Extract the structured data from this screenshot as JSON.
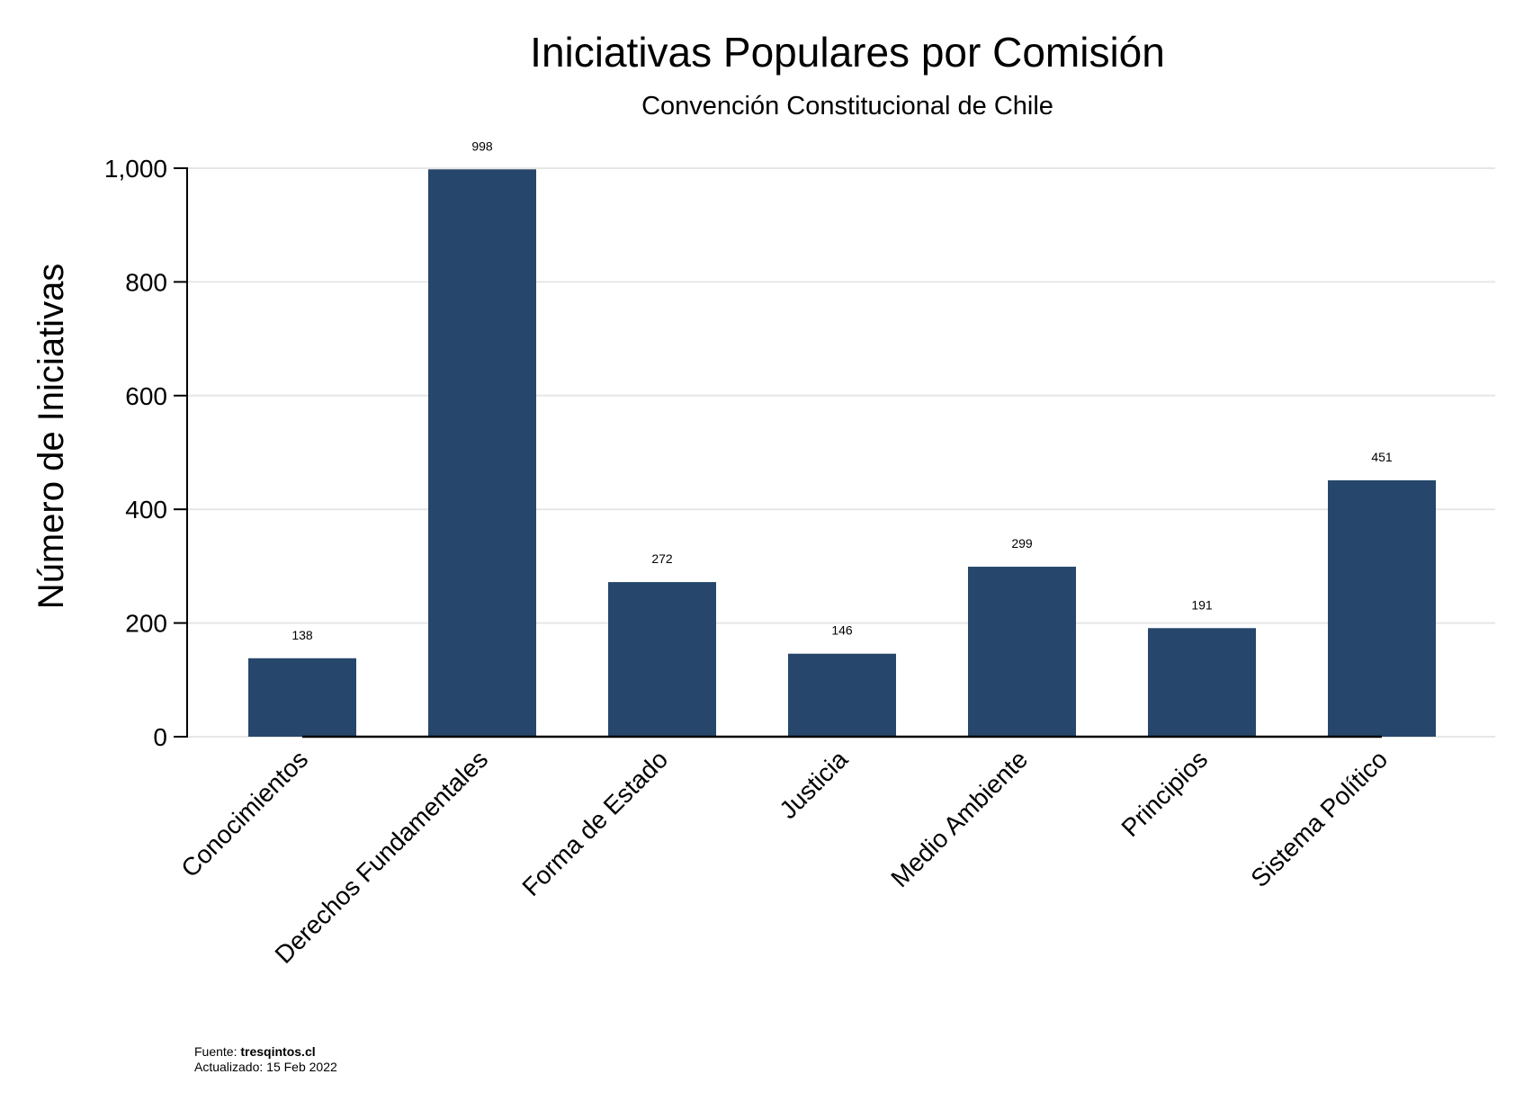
{
  "chart_data": {
    "type": "bar",
    "title": "Iniciativas Populares por Comisión",
    "subtitle": "Convención Constitucional de Chile",
    "xlabel": "",
    "ylabel": "Número de Iniciativas",
    "categories": [
      "Conocimientos",
      "Derechos Fundamentales",
      "Forma de Estado",
      "Justicia",
      "Medio Ambiente",
      "Principios",
      "Sistema Político"
    ],
    "values": [
      138,
      998,
      272,
      146,
      299,
      191,
      451
    ],
    "data_labels": [
      "138",
      "998",
      "272",
      "146",
      "299",
      "191",
      "451"
    ],
    "ylim": [
      0,
      1000
    ],
    "yticks": [
      0,
      200,
      400,
      600,
      800,
      1000
    ],
    "ytick_labels": [
      "0",
      "200",
      "400",
      "600",
      "800",
      "1,000"
    ],
    "grid": true,
    "bar_color": "#26476b",
    "grid_color": "#e6e6e6"
  },
  "notes": {
    "source_label": "Fuente: ",
    "source_value": "tresqintos.cl",
    "updated": "Actualizado: 15 Feb 2022"
  }
}
